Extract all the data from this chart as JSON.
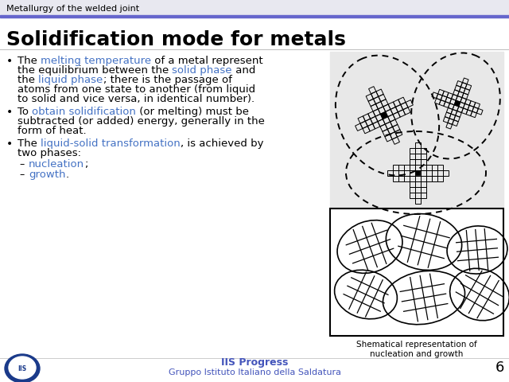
{
  "bg_color": "#ffffff",
  "header_bar_color": "#6666cc",
  "header_text": "Metallurgy of the welded joint",
  "header_text_color": "#000000",
  "header_bg": "#e8e8f0",
  "title": "Solidification mode for metals",
  "title_color": "#000000",
  "title_fontsize": 18,
  "body_fontsize": 9.5,
  "bullet_color": "#000000",
  "caption": "Shematical representation of\nnucleation and growth",
  "caption_fontsize": 7.5,
  "footer_text1": "IIS Progress",
  "footer_text2": "Gruppo Istituto Italiano della Saldatura",
  "footer_color": "#4455bb",
  "footer_fontsize": 8,
  "page_number": "6",
  "image_bg_top": "#e8e8e8",
  "accent_color": "#4472c4"
}
